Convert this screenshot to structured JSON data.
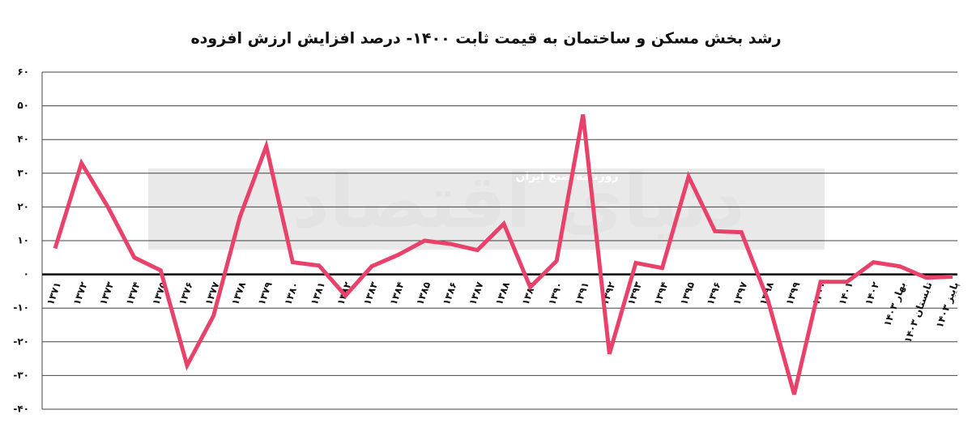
{
  "chart_data": {
    "type": "line",
    "title": "رشد بخش مسکن و ساختمان به قیمت ثابت ۱۴۰۰- درصد افزایش ارزش افزوده",
    "annotations": [
      "دنیای اقتصاد",
      "روزنامه صبح ایران"
    ],
    "categories": [
      "۱۳۷۱",
      "۱۳۷۲",
      "۱۳۷۳",
      "۱۳۷۴",
      "۱۳۷۵",
      "۱۳۷۶",
      "۱۳۷۷",
      "۱۳۷۸",
      "۱۳۷۹",
      "۱۳۸۰",
      "۱۳۸۱",
      "۱۳۸۲",
      "۱۳۸۳",
      "۱۳۸۴",
      "۱۳۸۵",
      "۱۳۸۶",
      "۱۳۸۷",
      "۱۳۸۸",
      "۱۳۸۹",
      "۱۳۹۰",
      "۱۳۹۱",
      "۱۳۹۲",
      "۱۳۹۳",
      "۱۳۹۴",
      "۱۳۹۵",
      "۱۳۹۶",
      "۱۳۹۷",
      "۱۳۹۸",
      "۱۳۹۹",
      "۱۴۰۰",
      "۱۴۰۱",
      "۱۴۰۲",
      "بهار ۱۴۰۳",
      "تابستان ۱۴۰۳",
      "پاییز ۱۴۰۳"
    ],
    "series": [
      {
        "name": "رشد",
        "color": "#e8416a",
        "values": [
          7.7,
          33,
          20,
          5,
          1.2,
          -27,
          -12.3,
          17,
          38,
          3.6,
          2.6,
          -6.3,
          2.4,
          5.8,
          10,
          9,
          7.2,
          15,
          -3.8,
          4,
          47.4,
          -23.6,
          3.4,
          1.9,
          29,
          12.8,
          12.5,
          -7.5,
          -35.6,
          -2.2,
          -2.2,
          3.6,
          2.4,
          -1,
          -0.7
        ]
      }
    ],
    "ylim": [
      -40,
      60
    ],
    "yticks": [
      {
        "value": -40,
        "label": "-۴۰"
      },
      {
        "value": -30,
        "label": "-۳۰"
      },
      {
        "value": -20,
        "label": "-۲۰"
      },
      {
        "value": -10,
        "label": "-۱۰"
      },
      {
        "value": 0,
        "label": "۰"
      },
      {
        "value": 10,
        "label": "۱۰"
      },
      {
        "value": 20,
        "label": "۲۰"
      },
      {
        "value": 30,
        "label": "۳۰"
      },
      {
        "value": 40,
        "label": "۴۰"
      },
      {
        "value": 50,
        "label": "۵۰"
      },
      {
        "value": 60,
        "label": "۶۰"
      }
    ],
    "grid": true
  }
}
